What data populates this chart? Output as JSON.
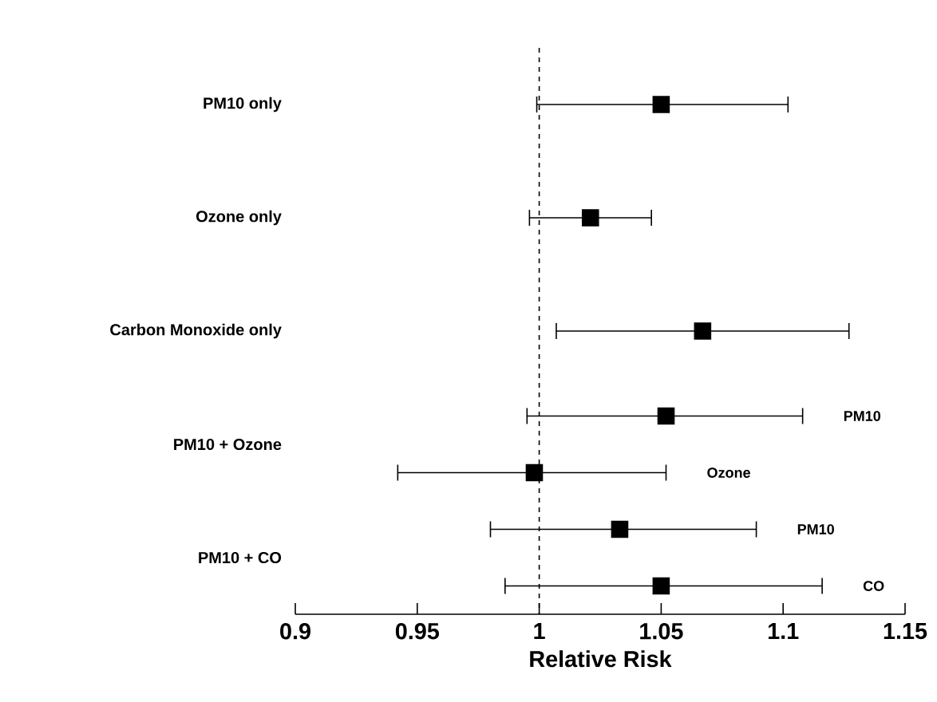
{
  "chart_data": {
    "type": "scatter",
    "orientation": "horizontal",
    "xlabel": "Relative Risk",
    "categories": [
      "PM10 only",
      "Ozone only",
      "Carbon Monoxide only",
      "PM10 + Ozone",
      "PM10 + CO"
    ],
    "series": [
      {
        "color": "#000000",
        "values": [
          1.05,
          1.021,
          1.067,
          1.052,
          1.033
        ],
        "errors": [
          [
            0.999,
            1.102
          ],
          [
            0.996,
            1.046
          ],
          [
            1.007,
            1.127
          ],
          [
            0.995,
            1.108
          ],
          [
            0.98,
            1.089
          ]
        ]
      },
      {
        "color": "#000000",
        "values": [
          null,
          null,
          null,
          0.998,
          1.05
        ],
        "errors": [
          null,
          null,
          null,
          [
            0.942,
            1.052
          ],
          [
            0.986,
            1.116
          ]
        ]
      }
    ],
    "xlim": [
      0.9,
      1.15
    ],
    "xticks": [
      0.9,
      0.95,
      1,
      1.05,
      1.1,
      1.15
    ],
    "marker": "square",
    "ref_lines": [
      {
        "axis": "x",
        "value": 1,
        "line_style": "dashed"
      }
    ],
    "annotations": [
      "PM10",
      "Ozone",
      "PM10",
      "CO"
    ]
  }
}
